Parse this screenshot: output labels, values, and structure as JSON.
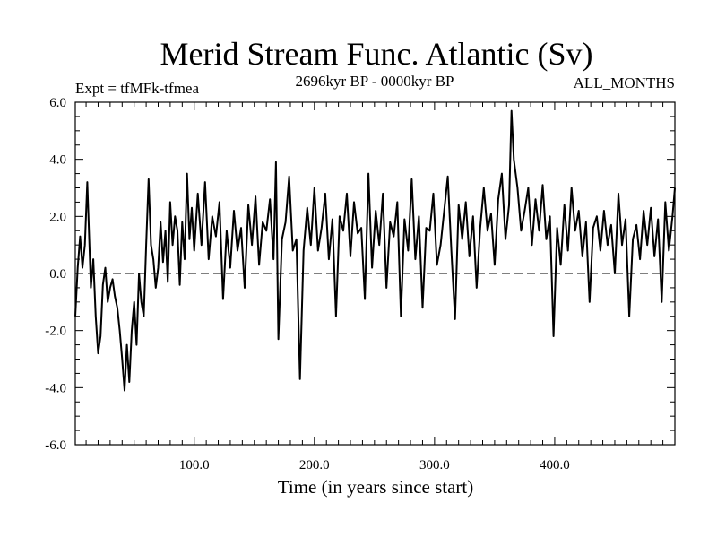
{
  "chart_data": {
    "type": "line",
    "title": "Merid Stream Func. Atlantic (Sv)",
    "subtitle_left": "Expt = tfMFk-tfmea",
    "subtitle_center": "2696kyr BP - 0000kyr BP",
    "subtitle_right": "ALL_MONTHS",
    "xlabel": "Time (in years since start)",
    "ylabel": "",
    "xlim": [
      1,
      500
    ],
    "ylim": [
      -6.0,
      6.0
    ],
    "xticks": [
      100,
      200,
      300,
      400
    ],
    "xtick_labels": [
      "100.0",
      "200.0",
      "300.0",
      "400.0"
    ],
    "yticks": [
      6.0,
      4.0,
      2.0,
      0.0,
      -2.0,
      -4.0,
      -6.0
    ],
    "ytick_labels": [
      "6.0",
      "4.0",
      "2.0",
      "0.0",
      "-2.0",
      "-4.0",
      "-6.0"
    ],
    "reference_line": {
      "y": 0.0,
      "style": "dashed"
    },
    "series": [
      {
        "name": "Merid Stream Func. Atlantic",
        "x": [
          1,
          3,
          5,
          7,
          9,
          11,
          14,
          16,
          18,
          20,
          22,
          24,
          26,
          28,
          30,
          32,
          34,
          36,
          38,
          40,
          42,
          44,
          46,
          48,
          50,
          52,
          54,
          56,
          58,
          60,
          62,
          64,
          66,
          68,
          70,
          72,
          74,
          76,
          78,
          80,
          82,
          84,
          86,
          88,
          90,
          92,
          94,
          96,
          98,
          100,
          103,
          106,
          109,
          112,
          115,
          118,
          121,
          124,
          127,
          130,
          133,
          136,
          139,
          142,
          145,
          148,
          151,
          154,
          157,
          160,
          163,
          166,
          168,
          170,
          173,
          176,
          179,
          182,
          185,
          188,
          191,
          194,
          197,
          200,
          203,
          206,
          209,
          212,
          215,
          218,
          221,
          224,
          227,
          230,
          233,
          236,
          239,
          242,
          245,
          248,
          251,
          254,
          257,
          260,
          263,
          266,
          269,
          272,
          275,
          278,
          281,
          284,
          287,
          290,
          293,
          296,
          299,
          302,
          305,
          308,
          311,
          314,
          317,
          320,
          323,
          326,
          329,
          332,
          335,
          338,
          341,
          344,
          347,
          350,
          353,
          356,
          359,
          362,
          364,
          366,
          369,
          372,
          375,
          378,
          381,
          384,
          387,
          390,
          393,
          396,
          399,
          402,
          405,
          408,
          411,
          414,
          417,
          420,
          423,
          426,
          429,
          432,
          435,
          438,
          441,
          444,
          447,
          450,
          453,
          456,
          459,
          462,
          465,
          468,
          471,
          474,
          477,
          480,
          483,
          486,
          489,
          492,
          495,
          498,
          500
        ],
        "y": [
          -1.5,
          0.2,
          1.3,
          0.2,
          1.0,
          3.2,
          -0.5,
          0.5,
          -1.5,
          -2.8,
          -2.2,
          -0.4,
          0.2,
          -1.0,
          -0.5,
          -0.2,
          -0.8,
          -1.2,
          -2.0,
          -3.0,
          -4.1,
          -2.5,
          -3.8,
          -2.0,
          -1.0,
          -2.5,
          0.0,
          -1.0,
          -1.5,
          1.0,
          3.3,
          1.0,
          0.5,
          -0.5,
          0.2,
          1.8,
          0.4,
          1.5,
          -0.3,
          2.5,
          1.0,
          2.0,
          1.5,
          -0.4,
          1.8,
          0.5,
          3.5,
          1.2,
          2.3,
          0.8,
          2.8,
          1.0,
          3.2,
          0.5,
          2.0,
          1.3,
          2.5,
          -0.9,
          1.5,
          0.2,
          2.2,
          0.8,
          1.6,
          -0.5,
          2.4,
          1.0,
          2.7,
          0.3,
          1.8,
          1.5,
          2.6,
          0.5,
          3.9,
          -2.3,
          1.2,
          1.8,
          3.4,
          0.8,
          1.2,
          -3.7,
          0.8,
          2.3,
          1.0,
          3.0,
          0.8,
          1.6,
          2.8,
          0.5,
          1.9,
          -1.5,
          2.0,
          1.5,
          2.8,
          0.6,
          2.5,
          1.4,
          1.6,
          -0.9,
          3.5,
          0.2,
          2.2,
          1.0,
          2.8,
          -0.5,
          1.8,
          1.3,
          2.5,
          -1.5,
          1.9,
          0.8,
          3.3,
          0.5,
          2.0,
          -1.2,
          1.6,
          1.5,
          2.8,
          0.3,
          1.0,
          2.2,
          3.4,
          0.8,
          -1.6,
          2.4,
          1.2,
          2.5,
          0.6,
          2.0,
          -0.5,
          1.6,
          3.0,
          1.5,
          2.1,
          0.3,
          2.6,
          3.5,
          1.2,
          2.4,
          5.7,
          4.0,
          3.0,
          1.5,
          2.2,
          3.0,
          1.0,
          2.6,
          1.5,
          3.1,
          1.2,
          2.0,
          -2.2,
          1.6,
          0.3,
          2.4,
          0.8,
          3.0,
          1.5,
          2.2,
          0.6,
          1.8,
          -1.0,
          1.6,
          2.0,
          0.8,
          2.2,
          1.0,
          1.7,
          0.0,
          2.8,
          1.0,
          1.9,
          -1.5,
          1.2,
          1.7,
          0.5,
          2.2,
          1.0,
          2.3,
          0.6,
          1.9,
          -1.0,
          2.5,
          0.8,
          2.0,
          3.0
        ]
      }
    ]
  }
}
